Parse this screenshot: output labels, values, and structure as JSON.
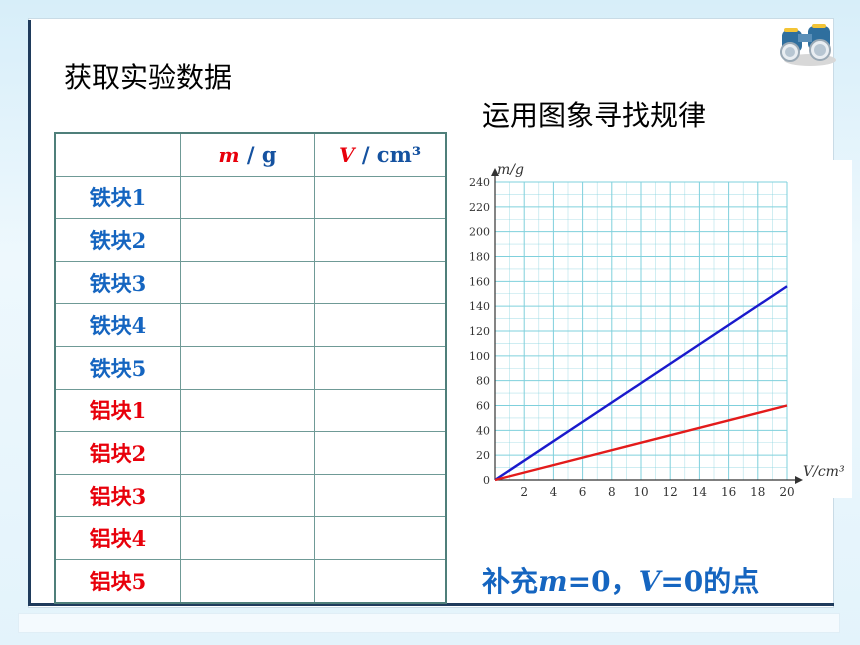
{
  "title": "获取实验数据",
  "subtitle": "运用图象寻找规律",
  "table": {
    "header_m_var": "m",
    "header_m_unit": "/ g",
    "header_v_var": "V",
    "header_v_unit": "/ cm³",
    "rows": [
      {
        "label": "铁块1",
        "m": "",
        "v": ""
      },
      {
        "label": "铁块2",
        "m": "",
        "v": ""
      },
      {
        "label": "铁块3",
        "m": "",
        "v": ""
      },
      {
        "label": "铁块4",
        "m": "",
        "v": ""
      },
      {
        "label": "铁块5",
        "m": "",
        "v": ""
      },
      {
        "label": "铝块1",
        "m": "",
        "v": ""
      },
      {
        "label": "铝块2",
        "m": "",
        "v": ""
      },
      {
        "label": "铝块3",
        "m": "",
        "v": ""
      },
      {
        "label": "铝块4",
        "m": "",
        "v": ""
      },
      {
        "label": "铝块5",
        "m": "",
        "v": ""
      }
    ]
  },
  "colors": {
    "iron": "#1565c0",
    "aluminum": "#e8000b",
    "grid": "#7fd0dc"
  },
  "chart_data": {
    "type": "line",
    "xlabel": "V/cm³",
    "ylabel": "m/g",
    "xlim": [
      0,
      20
    ],
    "ylim": [
      0,
      240
    ],
    "x_ticks": [
      2,
      4,
      6,
      8,
      10,
      12,
      14,
      16,
      18,
      20
    ],
    "y_ticks": [
      0,
      20,
      40,
      60,
      80,
      100,
      120,
      140,
      160,
      180,
      200,
      220,
      240
    ],
    "grid": true,
    "series": [
      {
        "color": "#1a1acc",
        "x": [
          0,
          20
        ],
        "y": [
          0,
          156
        ]
      },
      {
        "color": "#e31b1b",
        "x": [
          0,
          20
        ],
        "y": [
          0,
          60
        ]
      }
    ]
  },
  "footnote": {
    "p1": "补充",
    "m_var": "m",
    "p2": "=0，",
    "v_var": "V",
    "p3": "=0的点"
  }
}
